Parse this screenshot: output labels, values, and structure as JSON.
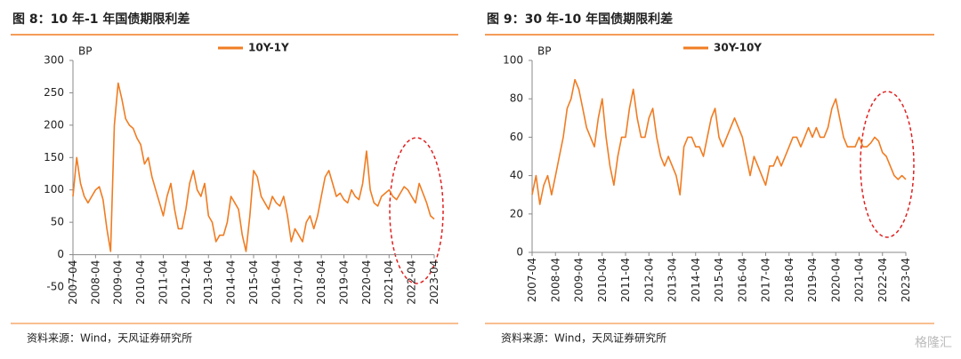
{
  "chart_data": [
    {
      "type": "line",
      "title": "图 8：10 年-1 年国债期限利差",
      "ylabel": "BP",
      "source": "资料来源：Wind，天风证券研究所",
      "x": [
        "2007-04",
        "2007-06",
        "2007-08",
        "2007-10",
        "2007-12",
        "2008-02",
        "2008-04",
        "2008-06",
        "2008-08",
        "2008-10",
        "2008-12",
        "2009-02",
        "2009-04",
        "2009-06",
        "2009-08",
        "2009-10",
        "2009-12",
        "2010-02",
        "2010-04",
        "2010-06",
        "2010-08",
        "2010-10",
        "2010-12",
        "2011-02",
        "2011-04",
        "2011-06",
        "2011-08",
        "2011-10",
        "2011-12",
        "2012-02",
        "2012-04",
        "2012-06",
        "2012-08",
        "2012-10",
        "2012-12",
        "2013-02",
        "2013-04",
        "2013-06",
        "2013-08",
        "2013-10",
        "2013-12",
        "2014-02",
        "2014-04",
        "2014-06",
        "2014-08",
        "2014-10",
        "2014-12",
        "2015-02",
        "2015-04",
        "2015-06",
        "2015-08",
        "2015-10",
        "2015-12",
        "2016-02",
        "2016-04",
        "2016-06",
        "2016-08",
        "2016-10",
        "2016-12",
        "2017-02",
        "2017-04",
        "2017-06",
        "2017-08",
        "2017-10",
        "2017-12",
        "2018-02",
        "2018-04",
        "2018-06",
        "2018-08",
        "2018-10",
        "2018-12",
        "2019-02",
        "2019-04",
        "2019-06",
        "2019-08",
        "2019-10",
        "2019-12",
        "2020-02",
        "2020-04",
        "2020-06",
        "2020-08",
        "2020-10",
        "2020-12",
        "2021-02",
        "2021-04",
        "2021-06",
        "2021-08",
        "2021-10",
        "2021-12",
        "2022-02",
        "2022-04",
        "2022-06",
        "2022-08",
        "2022-10",
        "2022-12",
        "2023-02",
        "2023-04"
      ],
      "series": [
        {
          "name": "10Y-1Y",
          "color": "#f07c22",
          "values": [
            90,
            150,
            110,
            90,
            80,
            90,
            100,
            105,
            85,
            40,
            5,
            200,
            265,
            240,
            210,
            200,
            195,
            180,
            170,
            140,
            150,
            120,
            100,
            80,
            60,
            90,
            110,
            70,
            40,
            40,
            70,
            110,
            130,
            100,
            90,
            110,
            60,
            50,
            20,
            30,
            30,
            50,
            90,
            80,
            70,
            30,
            5,
            60,
            130,
            120,
            90,
            80,
            70,
            90,
            80,
            75,
            90,
            60,
            20,
            40,
            30,
            20,
            50,
            60,
            40,
            60,
            90,
            120,
            130,
            110,
            90,
            95,
            85,
            80,
            100,
            90,
            85,
            110,
            160,
            100,
            80,
            75,
            90,
            95,
            100,
            90,
            85,
            95,
            105,
            100,
            90,
            80,
            110,
            95,
            80,
            60,
            55
          ]
        }
      ],
      "ylim": [
        -50,
        300
      ],
      "yticks": [
        -50,
        0,
        50,
        100,
        150,
        200,
        250,
        300
      ],
      "xlim": [
        "2007-04",
        "2023-04"
      ],
      "xticks": [
        "2007-04",
        "2008-04",
        "2009-04",
        "2010-04",
        "2011-04",
        "2012-04",
        "2013-04",
        "2014-04",
        "2015-04",
        "2016-04",
        "2017-04",
        "2018-04",
        "2019-04",
        "2020-04",
        "2021-04",
        "2022-04",
        "2023-04"
      ]
    },
    {
      "type": "line",
      "title": "图 9：30 年-10 年国债期限利差",
      "ylabel": "BP",
      "source": "资料来源：Wind，天风证券研究所",
      "x": [
        "2007-04",
        "2007-06",
        "2007-08",
        "2007-10",
        "2007-12",
        "2008-02",
        "2008-04",
        "2008-06",
        "2008-08",
        "2008-10",
        "2008-12",
        "2009-02",
        "2009-04",
        "2009-06",
        "2009-08",
        "2009-10",
        "2009-12",
        "2010-02",
        "2010-04",
        "2010-06",
        "2010-08",
        "2010-10",
        "2010-12",
        "2011-02",
        "2011-04",
        "2011-06",
        "2011-08",
        "2011-10",
        "2011-12",
        "2012-02",
        "2012-04",
        "2012-06",
        "2012-08",
        "2012-10",
        "2012-12",
        "2013-02",
        "2013-04",
        "2013-06",
        "2013-08",
        "2013-10",
        "2013-12",
        "2014-02",
        "2014-04",
        "2014-06",
        "2014-08",
        "2014-10",
        "2014-12",
        "2015-02",
        "2015-04",
        "2015-06",
        "2015-08",
        "2015-10",
        "2015-12",
        "2016-02",
        "2016-04",
        "2016-06",
        "2016-08",
        "2016-10",
        "2016-12",
        "2017-02",
        "2017-04",
        "2017-06",
        "2017-08",
        "2017-10",
        "2017-12",
        "2018-02",
        "2018-04",
        "2018-06",
        "2018-08",
        "2018-10",
        "2018-12",
        "2019-02",
        "2019-04",
        "2019-06",
        "2019-08",
        "2019-10",
        "2019-12",
        "2020-02",
        "2020-04",
        "2020-06",
        "2020-08",
        "2020-10",
        "2020-12",
        "2021-02",
        "2021-04",
        "2021-06",
        "2021-08",
        "2021-10",
        "2021-12",
        "2022-02",
        "2022-04",
        "2022-06",
        "2022-08",
        "2022-10",
        "2022-12",
        "2023-02",
        "2023-04"
      ],
      "series": [
        {
          "name": "30Y-10Y",
          "color": "#f07c22",
          "values": [
            30,
            40,
            25,
            35,
            40,
            30,
            40,
            50,
            60,
            75,
            80,
            90,
            85,
            75,
            65,
            60,
            55,
            70,
            80,
            60,
            45,
            35,
            50,
            60,
            60,
            75,
            85,
            70,
            60,
            60,
            70,
            75,
            60,
            50,
            45,
            50,
            45,
            40,
            30,
            55,
            60,
            60,
            55,
            55,
            50,
            60,
            70,
            75,
            60,
            55,
            60,
            65,
            70,
            65,
            60,
            50,
            40,
            50,
            45,
            40,
            35,
            45,
            45,
            50,
            45,
            50,
            55,
            60,
            60,
            55,
            60,
            65,
            60,
            65,
            60,
            60,
            65,
            75,
            80,
            70,
            60,
            55,
            55,
            55,
            60,
            55,
            55,
            57,
            60,
            58,
            52,
            50,
            45,
            40,
            38,
            40,
            38
          ]
        }
      ],
      "ylim": [
        0,
        100
      ],
      "yticks": [
        0,
        20,
        40,
        60,
        80,
        100
      ],
      "xlim": [
        "2007-04",
        "2023-04"
      ],
      "xticks": [
        "2007-04",
        "2008-04",
        "2009-04",
        "2010-04",
        "2011-04",
        "2012-04",
        "2013-04",
        "2014-04",
        "2015-04",
        "2016-04",
        "2017-04",
        "2018-04",
        "2019-04",
        "2020-04",
        "2021-04",
        "2022-04",
        "2023-04"
      ]
    }
  ],
  "watermark": "格隆汇"
}
